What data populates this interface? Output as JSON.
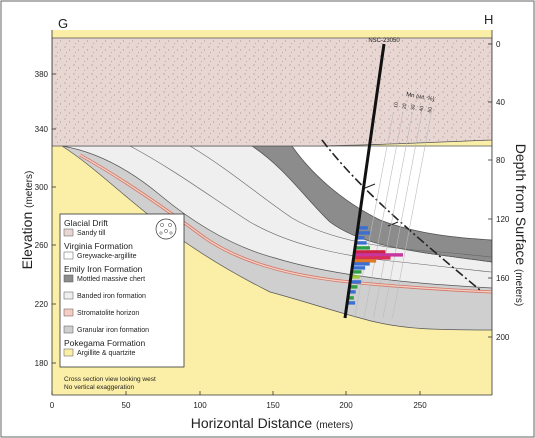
{
  "section": {
    "left_label": "G",
    "right_label": "H",
    "drillhole": "NSC-23050"
  },
  "axes": {
    "ylabel_left": "Elevation",
    "ylabel_left_units": "(meters)",
    "ylabel_right": "Depth from Surface",
    "ylabel_right_units": "(meters)",
    "xlabel": "Horizontal Distance",
    "xlabel_units": "(meters)",
    "x_ticks": [
      "0",
      "50",
      "100",
      "150",
      "200",
      "250"
    ],
    "elev_ticks": [
      "380",
      "340",
      "300",
      "260",
      "220",
      "180"
    ],
    "depth_ticks": [
      "0",
      "40",
      "80",
      "120",
      "160",
      "200"
    ]
  },
  "mn_label": "Mn (wt. %)",
  "mn_ticks": [
    "10",
    "20",
    "30",
    "40",
    "50"
  ],
  "legend": {
    "groups": [
      {
        "heading": "Glacial Drift",
        "units": [
          {
            "label": "Sandy till",
            "color": "#e8d6d3"
          }
        ]
      },
      {
        "heading": "Virginia Formation",
        "units": [
          {
            "label": "Greywacke-argillite",
            "color": "#ffffff"
          }
        ]
      },
      {
        "heading": "Emily Iron Formation",
        "units": [
          {
            "label": "Mottled massive chert",
            "color": "#8c8c8c"
          },
          {
            "label": "Banded iron formation",
            "color": "#efefef"
          },
          {
            "label": "Stromatolite horizon",
            "color": "#f6cdc2"
          },
          {
            "label": "Granular iron formation",
            "color": "#cfcfcf"
          }
        ]
      },
      {
        "heading": "Pokegama Formation",
        "units": [
          {
            "label": "Argillite & quartzite",
            "color": "#fbefa8"
          }
        ]
      }
    ]
  },
  "note": {
    "line1": "Cross section view looking west",
    "line2": "No vertical exaggeration"
  },
  "colors": {
    "till": "#e8d6d3",
    "argillite": "#fbefa8",
    "granular": "#cfcfcf",
    "mottled": "#8c8c8c",
    "banded": "#efefef",
    "stromatolite": "#f6cdc2",
    "virginia": "#ffffff"
  }
}
